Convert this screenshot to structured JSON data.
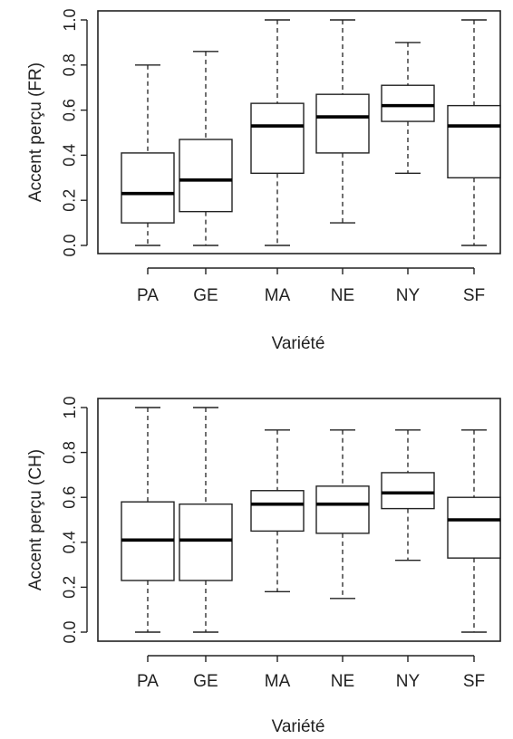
{
  "chart_data": [
    {
      "type": "boxplot",
      "xlabel": "Variété",
      "ylabel": "Accent perçu (FR)",
      "ylim": [
        0,
        1
      ],
      "yticks": [
        "0.0",
        "0.2",
        "0.4",
        "0.6",
        "0.8",
        "1.0"
      ],
      "categories": [
        "PA",
        "GE",
        "MA",
        "NE",
        "NY",
        "SF"
      ],
      "boxes": [
        {
          "min": 0.0,
          "q1": 0.1,
          "median": 0.23,
          "q3": 0.41,
          "max": 0.8
        },
        {
          "min": 0.0,
          "q1": 0.15,
          "median": 0.29,
          "q3": 0.47,
          "max": 0.86
        },
        {
          "min": 0.0,
          "q1": 0.32,
          "median": 0.53,
          "q3": 0.63,
          "max": 1.0
        },
        {
          "min": 0.1,
          "q1": 0.41,
          "median": 0.57,
          "q3": 0.67,
          "max": 1.0
        },
        {
          "min": 0.32,
          "q1": 0.55,
          "median": 0.62,
          "q3": 0.71,
          "max": 0.9
        },
        {
          "min": 0.0,
          "q1": 0.3,
          "median": 0.53,
          "q3": 0.62,
          "max": 1.0
        }
      ]
    },
    {
      "type": "boxplot",
      "xlabel": "Variété",
      "ylabel": "Accent perçu (CH)",
      "ylim": [
        0,
        1
      ],
      "yticks": [
        "0.0",
        "0.2",
        "0.4",
        "0.6",
        "0.8",
        "1.0"
      ],
      "categories": [
        "PA",
        "GE",
        "MA",
        "NE",
        "NY",
        "SF"
      ],
      "boxes": [
        {
          "min": 0.0,
          "q1": 0.23,
          "median": 0.41,
          "q3": 0.58,
          "max": 1.0
        },
        {
          "min": 0.0,
          "q1": 0.23,
          "median": 0.41,
          "q3": 0.57,
          "max": 1.0
        },
        {
          "min": 0.18,
          "q1": 0.45,
          "median": 0.57,
          "q3": 0.63,
          "max": 0.9
        },
        {
          "min": 0.15,
          "q1": 0.44,
          "median": 0.57,
          "q3": 0.65,
          "max": 0.9
        },
        {
          "min": 0.32,
          "q1": 0.55,
          "median": 0.62,
          "q3": 0.71,
          "max": 0.9
        },
        {
          "min": 0.0,
          "q1": 0.33,
          "median": 0.5,
          "q3": 0.6,
          "max": 0.9
        }
      ]
    }
  ]
}
